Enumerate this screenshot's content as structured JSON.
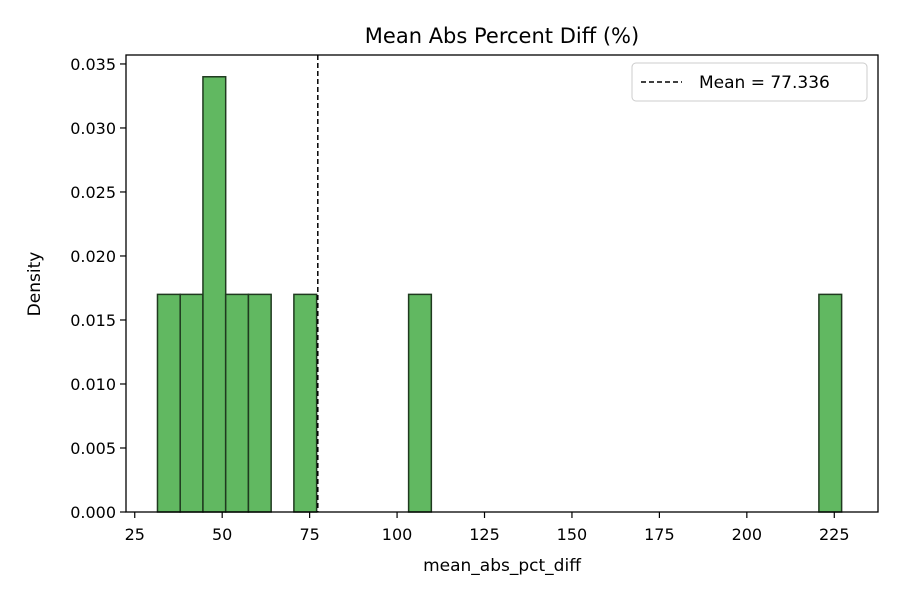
{
  "chart_data": {
    "type": "bar",
    "title": "Mean Abs Percent Diff (%)",
    "xlabel": "mean_abs_pct_diff",
    "ylabel": "Density",
    "xlim": [
      22.5,
      237.5
    ],
    "ylim": [
      0,
      0.0357
    ],
    "xticks": [
      25,
      50,
      75,
      100,
      125,
      150,
      175,
      200,
      225
    ],
    "yticks": [
      0.0,
      0.005,
      0.01,
      0.015,
      0.02,
      0.025,
      0.03,
      0.035
    ],
    "ytick_labels": [
      "0.000",
      "0.005",
      "0.010",
      "0.015",
      "0.020",
      "0.025",
      "0.030",
      "0.035"
    ],
    "bins": [
      {
        "x0": 31.5,
        "x1": 38.0,
        "density": 0.017
      },
      {
        "x0": 38.0,
        "x1": 44.5,
        "density": 0.017
      },
      {
        "x0": 44.5,
        "x1": 51.0,
        "density": 0.034
      },
      {
        "x0": 51.0,
        "x1": 57.5,
        "density": 0.017
      },
      {
        "x0": 57.5,
        "x1": 64.0,
        "density": 0.017
      },
      {
        "x0": 70.5,
        "x1": 77.0,
        "density": 0.017
      },
      {
        "x0": 103.3,
        "x1": 109.8,
        "density": 0.017
      },
      {
        "x0": 220.6,
        "x1": 227.1,
        "density": 0.017
      }
    ],
    "mean": 77.336,
    "legend": {
      "label": "Mean = 77.336",
      "placement": "top-right"
    },
    "colors": {
      "bar_fill": "#61b861",
      "bar_edge": "#1f3a1f",
      "mean_line": "#000000"
    },
    "grid": false
  }
}
